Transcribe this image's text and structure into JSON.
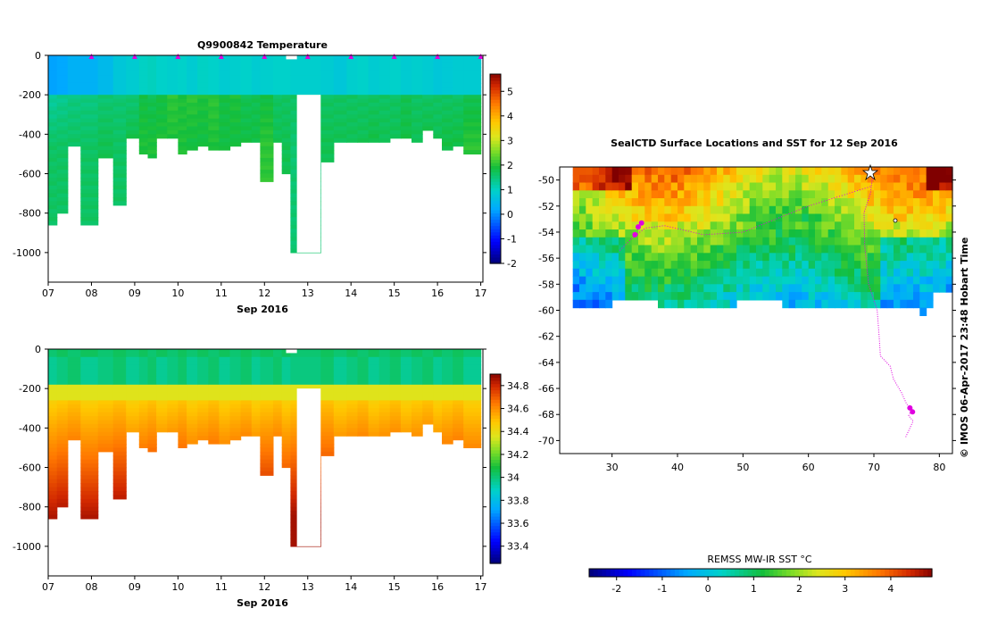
{
  "chart_data": [
    {
      "type": "heatmap",
      "title": "Q9900842  Temperature",
      "xlabel": "Sep 2016",
      "xlim": [
        7,
        17.05
      ],
      "ylim": [
        -1150,
        0
      ],
      "x_ticks": [
        7,
        8,
        9,
        10,
        11,
        12,
        13,
        14,
        15,
        16,
        17
      ],
      "x_tick_labels": [
        "07",
        "08",
        "09",
        "10",
        "11",
        "12",
        "13",
        "14",
        "15",
        "16",
        "17"
      ],
      "y_ticks": [
        0,
        -200,
        -400,
        -600,
        -800,
        -1000
      ],
      "y_tick_labels": [
        "0",
        "-200",
        "-400",
        "-600",
        "-800",
        "-1000"
      ],
      "colorbar": {
        "min": -2,
        "max": 5.7,
        "ticks": [
          -2,
          -1,
          0,
          1,
          2,
          3,
          4,
          5
        ],
        "tick_labels": [
          "-2",
          "-1",
          "0",
          "1",
          "2",
          "3",
          "4",
          "5"
        ]
      },
      "profiles": [
        {
          "x": 7.0,
          "depth": 860,
          "surf": 0.1,
          "mid": 1.2,
          "deep": 1.6
        },
        {
          "x": 7.2,
          "depth": 790,
          "surf": 0.1,
          "mid": 1.3,
          "deep": 1.6
        },
        {
          "x": 7.45,
          "depth": 450,
          "surf": 0.2,
          "mid": 1.4,
          "deep": 1.6
        },
        {
          "x": 7.75,
          "depth": 860,
          "surf": 0.3,
          "mid": 1.4,
          "deep": 1.6
        },
        {
          "x": 8.15,
          "depth": 520,
          "surf": 0.4,
          "mid": 1.5,
          "deep": 1.7
        },
        {
          "x": 8.5,
          "depth": 760,
          "surf": 0.6,
          "mid": 1.5,
          "deep": 1.6
        },
        {
          "x": 8.8,
          "depth": 420,
          "surf": 0.8,
          "mid": 1.5,
          "deep": 1.8
        },
        {
          "x": 9.1,
          "depth": 490,
          "surf": 0.9,
          "mid": 1.8,
          "deep": 1.9
        },
        {
          "x": 9.3,
          "depth": 510,
          "surf": 0.9,
          "mid": 1.7,
          "deep": 1.9
        },
        {
          "x": 9.5,
          "depth": 410,
          "surf": 0.9,
          "mid": 1.8,
          "deep": 1.9
        },
        {
          "x": 9.75,
          "depth": 410,
          "surf": 0.8,
          "mid": 2.0,
          "deep": 1.9
        },
        {
          "x": 10.0,
          "depth": 500,
          "surf": 0.8,
          "mid": 1.9,
          "deep": 1.9
        },
        {
          "x": 10.2,
          "depth": 480,
          "surf": 0.8,
          "mid": 2.0,
          "deep": 1.8
        },
        {
          "x": 10.45,
          "depth": 450,
          "surf": 0.9,
          "mid": 1.9,
          "deep": 1.8
        },
        {
          "x": 10.7,
          "depth": 470,
          "surf": 0.8,
          "mid": 2.0,
          "deep": 1.9
        },
        {
          "x": 10.95,
          "depth": 470,
          "surf": 0.8,
          "mid": 1.8,
          "deep": 1.8
        },
        {
          "x": 11.2,
          "depth": 460,
          "surf": 0.8,
          "mid": 1.9,
          "deep": 1.8
        },
        {
          "x": 11.45,
          "depth": 440,
          "surf": 0.8,
          "mid": 1.7,
          "deep": 1.8
        },
        {
          "x": 11.7,
          "depth": 430,
          "surf": 0.8,
          "mid": 1.7,
          "deep": 1.8
        },
        {
          "x": 11.9,
          "depth": 630,
          "surf": 0.8,
          "mid": 1.8,
          "deep": 2.0
        },
        {
          "x": 12.2,
          "depth": 430,
          "surf": 0.8,
          "mid": 1.6,
          "deep": 1.7
        },
        {
          "x": 12.4,
          "depth": 590,
          "surf": 0.9,
          "mid": 1.6,
          "deep": 1.7
        },
        {
          "x": 12.6,
          "depth": 1000,
          "surf": 0.8,
          "mid": 1.6,
          "deep": 1.5
        },
        {
          "x": 13.3,
          "depth": 530,
          "surf": 0.7,
          "mid": 1.6,
          "deep": 1.7
        },
        {
          "x": 13.6,
          "depth": 430,
          "surf": 0.7,
          "mid": 1.6,
          "deep": 1.7
        },
        {
          "x": 13.9,
          "depth": 440,
          "surf": 0.8,
          "mid": 1.6,
          "deep": 1.7
        },
        {
          "x": 14.15,
          "depth": 440,
          "surf": 0.8,
          "mid": 1.6,
          "deep": 1.7
        },
        {
          "x": 14.4,
          "depth": 430,
          "surf": 0.8,
          "mid": 1.6,
          "deep": 1.8
        },
        {
          "x": 14.65,
          "depth": 430,
          "surf": 0.8,
          "mid": 1.6,
          "deep": 1.7
        },
        {
          "x": 14.9,
          "depth": 420,
          "surf": 0.8,
          "mid": 1.6,
          "deep": 1.7
        },
        {
          "x": 15.15,
          "depth": 420,
          "surf": 0.8,
          "mid": 1.7,
          "deep": 1.8
        },
        {
          "x": 15.4,
          "depth": 430,
          "surf": 0.8,
          "mid": 1.6,
          "deep": 1.7
        },
        {
          "x": 15.65,
          "depth": 370,
          "surf": 0.7,
          "mid": 1.6,
          "deep": 1.8
        },
        {
          "x": 15.9,
          "depth": 410,
          "surf": 0.7,
          "mid": 1.6,
          "deep": 1.7
        },
        {
          "x": 16.1,
          "depth": 470,
          "surf": 0.7,
          "mid": 1.6,
          "deep": 1.8
        },
        {
          "x": 16.35,
          "depth": 460,
          "surf": 0.7,
          "mid": 1.6,
          "deep": 1.8
        },
        {
          "x": 16.6,
          "depth": 500,
          "surf": 0.8,
          "mid": 1.7,
          "deep": 2.0
        }
      ],
      "markers_x": [
        8,
        9,
        10,
        11,
        12,
        13,
        14,
        15,
        16,
        17
      ],
      "gap": {
        "x": [
          12.75,
          13.3
        ],
        "depth": [
          200,
          1000
        ]
      },
      "note_surface_gap": {
        "x": [
          12.5,
          12.75
        ],
        "depth": [
          0,
          20
        ]
      }
    },
    {
      "type": "heatmap",
      "title": "",
      "xlabel": "Sep 2016",
      "xlim": [
        7,
        17.05
      ],
      "ylim": [
        -1150,
        0
      ],
      "x_ticks": [
        7,
        8,
        9,
        10,
        11,
        12,
        13,
        14,
        15,
        16,
        17
      ],
      "x_tick_labels": [
        "07",
        "08",
        "09",
        "10",
        "11",
        "12",
        "13",
        "14",
        "15",
        "16",
        "17"
      ],
      "y_ticks": [
        0,
        -200,
        -400,
        -600,
        -800,
        -1000
      ],
      "y_tick_labels": [
        "0",
        "-200",
        "-400",
        "-600",
        "-800",
        "-1000"
      ],
      "colorbar": {
        "min": 33.25,
        "max": 34.9,
        "ticks": [
          33.4,
          33.6,
          33.8,
          34,
          34.2,
          34.4,
          34.6,
          34.8
        ],
        "tick_labels": [
          "33.4",
          "33.6",
          "33.8",
          "34",
          "34.2",
          "34.4",
          "34.6",
          "34.8"
        ]
      }
    },
    {
      "type": "heatmap",
      "title": "SealCTD Surface Locations and SST for 12 Sep 2016",
      "xlim": [
        22,
        82
      ],
      "ylim": [
        -71,
        -49
      ],
      "x_ticks": [
        30,
        40,
        50,
        60,
        70,
        80
      ],
      "x_tick_labels": [
        "30",
        "40",
        "50",
        "60",
        "70",
        "80"
      ],
      "y_ticks": [
        -50,
        -52,
        -54,
        -56,
        -58,
        -60,
        -62,
        -64,
        -66,
        -68,
        -70
      ],
      "y_tick_labels": [
        "-50",
        "-52",
        "-54",
        "-56",
        "-58",
        "-60",
        "-62",
        "-64",
        "-66",
        "-68",
        "-70"
      ],
      "credit": "© IMOS 06-Apr-2017 23:48 Hobart Time",
      "colorbar": {
        "label": "REMSS MW-IR SST °C",
        "min": -2.6,
        "max": 4.9,
        "ticks": [
          -2,
          -1,
          0,
          1,
          2,
          3,
          4
        ],
        "tick_labels": [
          "-2",
          "-1",
          "0",
          "1",
          "2",
          "3",
          "4"
        ]
      },
      "track_color": "#e000e0"
    }
  ]
}
